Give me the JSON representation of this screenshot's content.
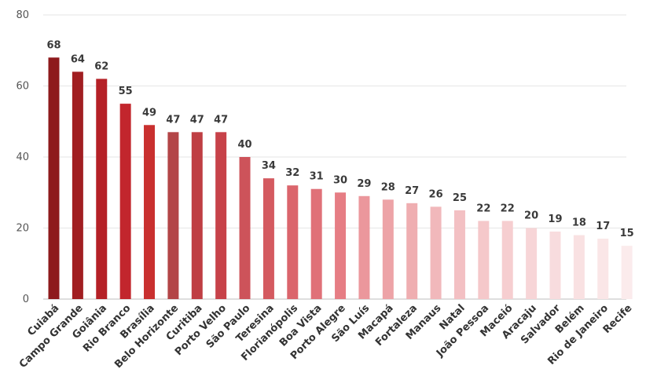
{
  "chart_data": {
    "type": "bar",
    "title": "",
    "xlabel": "",
    "ylabel": "",
    "ylim": [
      0,
      80
    ],
    "yticks": [
      0,
      20,
      40,
      60,
      80
    ],
    "grid": true,
    "categories": [
      "Cuiabá",
      "Campo Grande",
      "Goiânia",
      "Rio Branco",
      "Brasília",
      "Belo Horizonte",
      "Curitiba",
      "Porto Velho",
      "São Paulo",
      "Teresina",
      "Florianópolis",
      "Boa Vista",
      "Porto Alegre",
      "São Luís",
      "Macapá",
      "Fortaleza",
      "Manaus",
      "Natal",
      "João Pessoa",
      "Maceió",
      "Aracaju",
      "Salvador",
      "Belém",
      "Rio de Janeiro",
      "Recife"
    ],
    "values": [
      68,
      64,
      62,
      55,
      49,
      47,
      47,
      47,
      40,
      34,
      32,
      31,
      30,
      29,
      28,
      27,
      26,
      25,
      22,
      22,
      20,
      19,
      18,
      17,
      15
    ],
    "colors": [
      "#8e1a1c",
      "#a11e21",
      "#b52026",
      "#c2262d",
      "#c9302f",
      "#b34547",
      "#bf3e43",
      "#c74249",
      "#cd535a",
      "#d45a60",
      "#db656c",
      "#e07178",
      "#e67d84",
      "#eb979c",
      "#eda3a7",
      "#efaeb1",
      "#f1b8bb",
      "#f3c0c3",
      "#f5c8ca",
      "#f6ced0",
      "#f7d5d7",
      "#f8dcde",
      "#f9e1e2",
      "#fae6e7",
      "#fbebec"
    ]
  }
}
